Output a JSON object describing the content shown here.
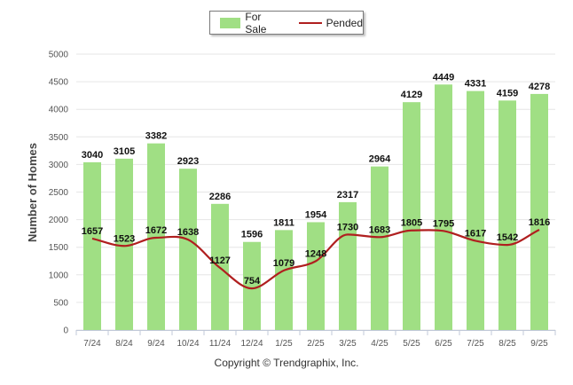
{
  "chart_data": {
    "type": "bar",
    "title": "",
    "xlabel": "",
    "ylabel": "Number of Homes",
    "ylim": [
      0,
      5000
    ],
    "yticks": [
      "0",
      "500",
      "1000",
      "1500",
      "2000",
      "2500",
      "3000",
      "3500",
      "4000",
      "4500",
      "5000"
    ],
    "grid": true,
    "legend_position": "top-center",
    "categories": [
      "7/24",
      "8/24",
      "9/24",
      "10/24",
      "11/24",
      "12/24",
      "1/25",
      "2/25",
      "3/25",
      "4/25",
      "5/25",
      "6/25",
      "7/25",
      "8/25",
      "9/25"
    ],
    "series": [
      {
        "name": "For Sale",
        "type": "bar",
        "color": "#a0df84",
        "values": [
          3040,
          3105,
          3382,
          2923,
          2286,
          1596,
          1811,
          1954,
          2317,
          2964,
          4129,
          4449,
          4331,
          4159,
          4278
        ]
      },
      {
        "name": "Pended",
        "type": "line",
        "color": "#b01f1f",
        "values": [
          1657,
          1523,
          1672,
          1638,
          1127,
          754,
          1079,
          1248,
          1730,
          1683,
          1805,
          1795,
          1617,
          1542,
          1816
        ]
      }
    ]
  },
  "legend": {
    "for_sale": "For Sale",
    "pended": "Pended"
  },
  "footer": {
    "copyright": "Copyright © Trendgraphix, Inc."
  }
}
